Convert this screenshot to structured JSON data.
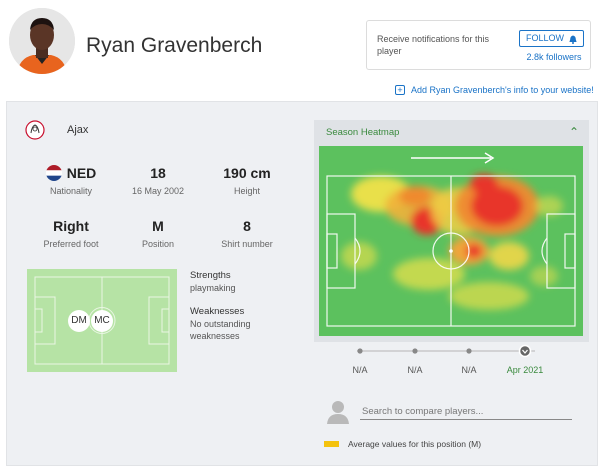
{
  "player": {
    "name": "Ryan Gravenberch"
  },
  "notifications": {
    "text": "Receive notifications for this player",
    "follow_label": "FOLLOW",
    "followers": "2.8k followers"
  },
  "add_info": {
    "label": "Add Ryan Gravenberch's info to your website!"
  },
  "club": {
    "name": "Ajax"
  },
  "stats": [
    {
      "value": "NED",
      "label": "Nationality"
    },
    {
      "value": "18",
      "label": "16 May 2002"
    },
    {
      "value": "190 cm",
      "label": "Height"
    },
    {
      "value": "Right",
      "label": "Preferred foot"
    },
    {
      "value": "M",
      "label": "Position"
    },
    {
      "value": "8",
      "label": "Shirt number"
    }
  ],
  "positions": [
    "DM",
    "MC"
  ],
  "strengths": {
    "title": "Strengths",
    "items": "playmaking"
  },
  "weaknesses": {
    "title": "Weaknesses",
    "items": "No outstanding weaknesses"
  },
  "heatmap": {
    "title": "Season Heatmap"
  },
  "timeline": {
    "points": [
      {
        "label": "N/A"
      },
      {
        "label": "N/A"
      },
      {
        "label": "N/A"
      },
      {
        "label": "Apr 2021",
        "active": true
      }
    ]
  },
  "compare": {
    "placeholder": "Search to compare players..."
  },
  "legend": {
    "label": "Average values for this position (M)"
  },
  "colors": {
    "accent_blue": "#1a73c7",
    "pitch_green": "#5cc15e",
    "heat_green": "#3a8a3e",
    "legend_yellow": "#f4c20d"
  }
}
